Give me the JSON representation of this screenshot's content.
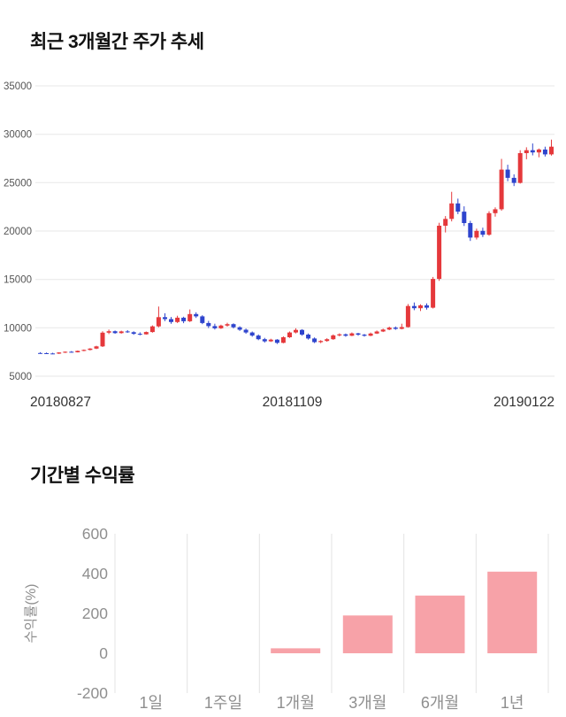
{
  "colors": {
    "background": "#ffffff",
    "title_text": "#111111",
    "grid": "#e7e7e7",
    "axis_text_dark": "#555555",
    "axis_text_gray": "#8f8f8f",
    "candle_up": "#e5383b",
    "candle_down": "#2e44cd",
    "bar_fill": "#f7a2a8"
  },
  "chart_data": [
    {
      "type": "candlestick",
      "title": "최근 3개월간 주가 추세",
      "x_labels": [
        "20180827",
        "20181109",
        "20190122"
      ],
      "ylim": [
        5000,
        35000
      ],
      "y_ticks": [
        35000,
        30000,
        25000,
        20000,
        15000,
        10000,
        5000
      ],
      "grid": true,
      "up_color": "#e5383b",
      "down_color": "#2e44cd",
      "candles_format": [
        "open",
        "high",
        "low",
        "close"
      ],
      "candles": [
        [
          7400,
          7480,
          7320,
          7380
        ],
        [
          7380,
          7450,
          7300,
          7350
        ],
        [
          7350,
          7420,
          7280,
          7330
        ],
        [
          7330,
          7480,
          7300,
          7450
        ],
        [
          7450,
          7560,
          7400,
          7520
        ],
        [
          7520,
          7600,
          7430,
          7470
        ],
        [
          7470,
          7650,
          7450,
          7620
        ],
        [
          7620,
          7760,
          7580,
          7720
        ],
        [
          7720,
          7900,
          7660,
          7850
        ],
        [
          7850,
          8150,
          7800,
          8080
        ],
        [
          8080,
          9650,
          8020,
          9500
        ],
        [
          9500,
          9820,
          9350,
          9650
        ],
        [
          9650,
          9720,
          9380,
          9450
        ],
        [
          9450,
          9700,
          9400,
          9630
        ],
        [
          9630,
          9760,
          9480,
          9550
        ],
        [
          9550,
          9640,
          9280,
          9380
        ],
        [
          9380,
          9540,
          9230,
          9330
        ],
        [
          9330,
          9620,
          9300,
          9560
        ],
        [
          9560,
          10250,
          9500,
          10150
        ],
        [
          10150,
          12200,
          10050,
          11100
        ],
        [
          11100,
          11500,
          10700,
          10900
        ],
        [
          10900,
          11120,
          10420,
          10600
        ],
        [
          10600,
          11250,
          10500,
          11050
        ],
        [
          11050,
          11150,
          10480,
          10680
        ],
        [
          10680,
          11900,
          10600,
          11420
        ],
        [
          11420,
          11600,
          11020,
          11180
        ],
        [
          11180,
          11300,
          10380,
          10500
        ],
        [
          10500,
          10720,
          9980,
          10180
        ],
        [
          10180,
          10420,
          9820,
          9950
        ],
        [
          9950,
          10320,
          9880,
          10230
        ],
        [
          10230,
          10520,
          10120,
          10380
        ],
        [
          10380,
          10470,
          9940,
          10060
        ],
        [
          10060,
          10160,
          9680,
          9800
        ],
        [
          9800,
          9920,
          9380,
          9520
        ],
        [
          9520,
          9620,
          9080,
          9200
        ],
        [
          9200,
          9320,
          8720,
          8820
        ],
        [
          8820,
          8960,
          8480,
          8600
        ],
        [
          8600,
          8870,
          8540,
          8780
        ],
        [
          8780,
          8830,
          8330,
          8450
        ],
        [
          8450,
          9120,
          8400,
          9020
        ],
        [
          9020,
          9620,
          8960,
          9520
        ],
        [
          9520,
          9950,
          9430,
          9780
        ],
        [
          9780,
          9860,
          9180,
          9300
        ],
        [
          9300,
          9420,
          8780,
          8900
        ],
        [
          8900,
          9010,
          8420,
          8520
        ],
        [
          8520,
          8720,
          8410,
          8640
        ],
        [
          8640,
          8920,
          8560,
          8820
        ],
        [
          8820,
          9320,
          8760,
          9220
        ],
        [
          9220,
          9430,
          9120,
          9330
        ],
        [
          9330,
          9410,
          9080,
          9180
        ],
        [
          9180,
          9520,
          9140,
          9430
        ],
        [
          9430,
          9480,
          9190,
          9290
        ],
        [
          9290,
          9360,
          9090,
          9180
        ],
        [
          9180,
          9510,
          9130,
          9410
        ],
        [
          9410,
          9720,
          9360,
          9620
        ],
        [
          9620,
          9910,
          9560,
          9820
        ],
        [
          9820,
          10120,
          9760,
          10020
        ],
        [
          10020,
          10140,
          9790,
          9890
        ],
        [
          9890,
          10420,
          9840,
          10080
        ],
        [
          10080,
          12450,
          10020,
          12250
        ],
        [
          12250,
          12620,
          11820,
          12020
        ],
        [
          12020,
          12430,
          11730,
          12320
        ],
        [
          12320,
          12520,
          11880,
          12080
        ],
        [
          12080,
          15250,
          12000,
          15050
        ],
        [
          15050,
          20850,
          14850,
          20550
        ],
        [
          20550,
          21550,
          19850,
          21250
        ],
        [
          21250,
          24050,
          21000,
          22850
        ],
        [
          22850,
          23350,
          21750,
          22000
        ],
        [
          22000,
          22550,
          20520,
          20820
        ],
        [
          20820,
          21050,
          18980,
          19320
        ],
        [
          19320,
          20250,
          19120,
          20020
        ],
        [
          20020,
          20350,
          19380,
          19620
        ],
        [
          19620,
          22050,
          19520,
          21850
        ],
        [
          21850,
          22450,
          21480,
          22250
        ],
        [
          22250,
          27450,
          22100,
          26350
        ],
        [
          26350,
          26850,
          25150,
          25500
        ],
        [
          25500,
          25850,
          24650,
          24980
        ],
        [
          24980,
          28350,
          24900,
          28050
        ],
        [
          28050,
          28650,
          27420,
          28350
        ],
        [
          28350,
          29050,
          27820,
          28120
        ],
        [
          28120,
          28520,
          27620,
          28420
        ],
        [
          28420,
          28720,
          27700,
          27920
        ],
        [
          27920,
          29450,
          27800,
          28720
        ]
      ]
    },
    {
      "type": "bar",
      "title": "기간별 수익률",
      "ylabel": "수익률(%)",
      "categories": [
        "1일",
        "1주일",
        "1개월",
        "3개월",
        "6개월",
        "1년"
      ],
      "values": [
        0,
        0,
        25,
        190,
        290,
        410
      ],
      "ylim": [
        -200,
        600
      ],
      "y_ticks": [
        600,
        400,
        200,
        0,
        -200
      ],
      "grid": "vertical",
      "legend": "none",
      "bar_color": "#f7a2a8"
    }
  ]
}
